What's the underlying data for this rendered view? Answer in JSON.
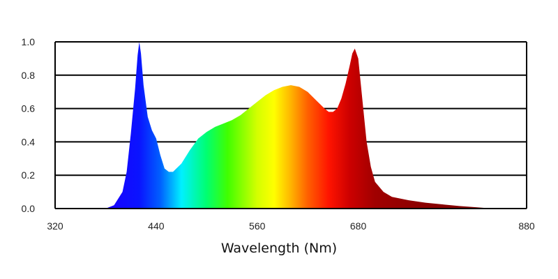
{
  "chart_data": {
    "type": "area",
    "title": "",
    "xlabel": "Wavelength (Nm)",
    "ylabel": "",
    "xlim": [
      320,
      880
    ],
    "ylim": [
      0,
      1.0
    ],
    "x_ticks": [
      "320",
      "440",
      "560",
      "680",
      "880"
    ],
    "y_ticks": [
      "1.0",
      "0.8",
      "0.6",
      "0.4",
      "0.2",
      "0.0"
    ],
    "grid": true,
    "legend": "none",
    "series": [
      {
        "x": [
          380,
          390,
          400,
          405,
          410,
          415,
          418,
          420,
          422,
          425,
          430,
          435,
          440,
          445,
          450,
          455,
          460,
          470,
          480,
          490,
          500,
          510,
          520,
          530,
          540,
          550,
          560,
          570,
          580,
          590,
          600,
          610,
          620,
          630,
          640,
          645,
          650,
          655,
          660,
          665,
          670,
          673,
          676,
          680,
          685,
          690,
          695,
          700,
          710,
          720,
          740,
          760,
          780,
          800,
          820,
          840
        ],
        "y": [
          0.0,
          0.02,
          0.1,
          0.22,
          0.45,
          0.72,
          0.92,
          1.0,
          0.93,
          0.74,
          0.55,
          0.47,
          0.42,
          0.32,
          0.24,
          0.22,
          0.22,
          0.27,
          0.35,
          0.42,
          0.46,
          0.49,
          0.51,
          0.53,
          0.56,
          0.6,
          0.64,
          0.68,
          0.71,
          0.73,
          0.74,
          0.73,
          0.7,
          0.65,
          0.6,
          0.58,
          0.58,
          0.6,
          0.66,
          0.75,
          0.86,
          0.93,
          0.96,
          0.9,
          0.65,
          0.4,
          0.25,
          0.16,
          0.1,
          0.07,
          0.05,
          0.035,
          0.025,
          0.015,
          0.008,
          0.0
        ]
      }
    ],
    "gradient_stops": [
      {
        "wavelength": 380,
        "color": "#1a00ff"
      },
      {
        "wavelength": 420,
        "color": "#0a14ff"
      },
      {
        "wavelength": 445,
        "color": "#0060ff"
      },
      {
        "wavelength": 470,
        "color": "#00f0ff"
      },
      {
        "wavelength": 500,
        "color": "#00ff70"
      },
      {
        "wavelength": 525,
        "color": "#40ff00"
      },
      {
        "wavelength": 560,
        "color": "#d4ff00"
      },
      {
        "wavelength": 580,
        "color": "#ffff00"
      },
      {
        "wavelength": 600,
        "color": "#ffb400"
      },
      {
        "wavelength": 620,
        "color": "#ff6000"
      },
      {
        "wavelength": 645,
        "color": "#ff1400"
      },
      {
        "wavelength": 670,
        "color": "#cc0000"
      },
      {
        "wavelength": 700,
        "color": "#a00000"
      },
      {
        "wavelength": 760,
        "color": "#8a0000"
      },
      {
        "wavelength": 880,
        "color": "#7a0000"
      }
    ],
    "colors": {
      "grid": "#000000",
      "axis": "#000000"
    }
  }
}
